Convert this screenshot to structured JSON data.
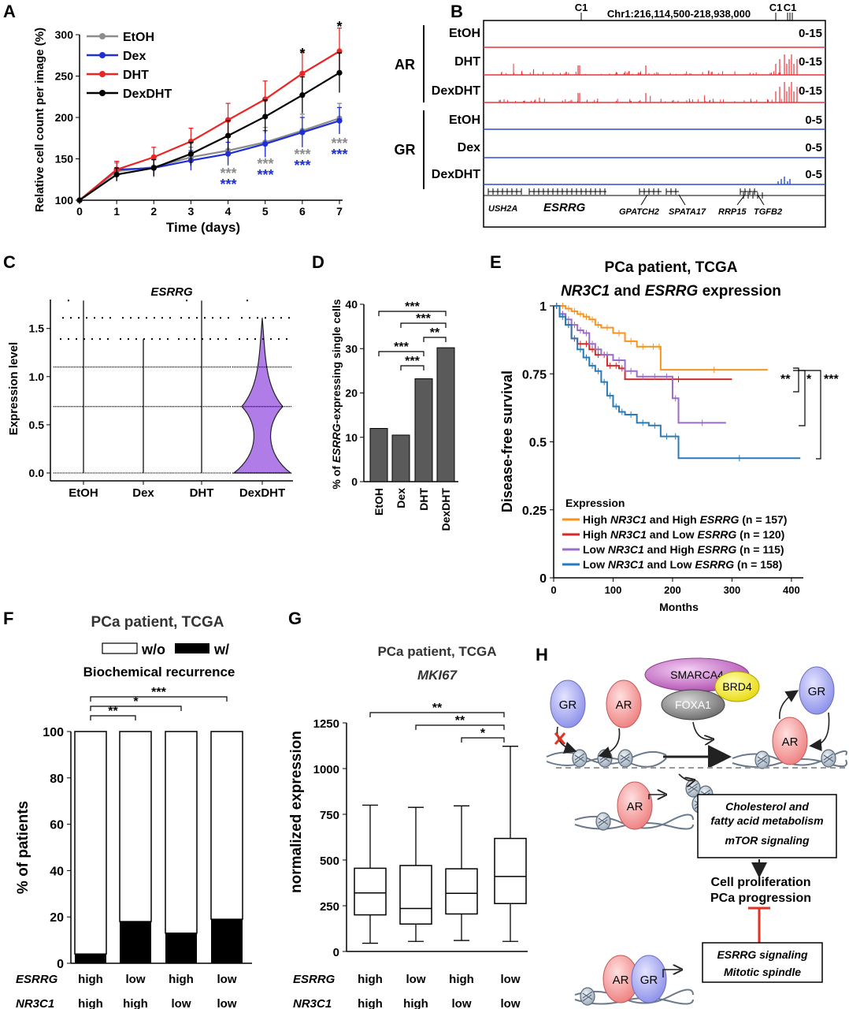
{
  "colors": {
    "etoh": "#8c8c8c",
    "dex": "#1f2fd6",
    "dht": "#ec2424",
    "dexdht": "#000000",
    "ar_track": "#e8333a",
    "gr_track": "#2a4bd8",
    "violin": "#b07ce8",
    "bar": "#5a5a5a",
    "km_orange": "#f7941d",
    "km_red": "#d42a2a",
    "km_purple": "#9b6cc9",
    "km_blue": "#2a7ab8"
  },
  "panel_labels": [
    "A",
    "B",
    "C",
    "D",
    "E",
    "F",
    "G",
    "H"
  ],
  "panelA": {
    "xlabel": "Time (days)",
    "ylabel": "Relative cell count per image (%)",
    "legend": [
      "EtOH",
      "Dex",
      "DHT",
      "DexDHT"
    ],
    "sig_gray": [
      "***",
      "***",
      "***",
      "***"
    ],
    "sig_blue": [
      "***",
      "***",
      "***",
      "***"
    ],
    "sig_black": [
      "*",
      "*"
    ]
  },
  "panelB": {
    "coord": "Chr1:216,114,500-218,938,000",
    "c1_labels": [
      "C1",
      "C1",
      "C1"
    ],
    "group_ar": "AR",
    "group_gr": "GR",
    "tracks": [
      {
        "name": "EtOH",
        "range": "0-15"
      },
      {
        "name": "DHT",
        "range": "0-15"
      },
      {
        "name": "DexDHT",
        "range": "0-15"
      },
      {
        "name": "EtOH",
        "range": "0-5"
      },
      {
        "name": "Dex",
        "range": "0-5"
      },
      {
        "name": "DexDHT",
        "range": "0-5"
      }
    ],
    "genes": [
      "USH2A",
      "ESRRG",
      "GPATCH2",
      "SPATA17",
      "RRP15",
      "TGFB2"
    ]
  },
  "panelC": {
    "title": "ESRRG",
    "ylabel": "Expression level"
  },
  "panelD": {
    "ylabel_pre": "% of ",
    "ylabel_gene": "ESRRG",
    "ylabel_post": "-expressing single cells",
    "sigs": [
      "***",
      "***",
      "**",
      "***",
      "***"
    ]
  },
  "panelE": {
    "title1": "PCa patient, TCGA",
    "title2_gene1": "NR3C1",
    "title2_mid": " and ",
    "title2_gene2": "ESRRG",
    "title2_post": " expression",
    "xlabel": "Months",
    "ylabel": "Disease-free survival",
    "legend_title": "Expression",
    "legend": [
      {
        "l1": "High ",
        "g1": "NR3C1",
        "m": " and High ",
        "g2": "ESRRG",
        "n": " (n = 157)"
      },
      {
        "l1": "High ",
        "g1": "NR3C1",
        "m": " and Low ",
        "g2": "ESRRG",
        "n": " (n = 120)"
      },
      {
        "l1": "Low ",
        "g1": "NR3C1",
        "m": " and High ",
        "g2": "ESRRG",
        "n": " (n = 115)"
      },
      {
        "l1": "Low ",
        "g1": "NR3C1",
        "m": " and Low ",
        "g2": "ESRRG",
        "n": " (n = 158)"
      }
    ],
    "sigs": [
      "**",
      "*",
      "***"
    ]
  },
  "panelF": {
    "title": "PCa patient, TCGA",
    "legend_wo": "w/o",
    "legend_w": "w/",
    "subtitle": "Biochemical recurrence",
    "ylabel": "% of patients",
    "row1_label": "ESRRG",
    "row2_label": "NR3C1",
    "row1": [
      "high",
      "low",
      "high",
      "low"
    ],
    "row2": [
      "high",
      "high",
      "low",
      "low"
    ],
    "sigs": [
      "**",
      "*",
      "***"
    ]
  },
  "panelG": {
    "title": "PCa patient, TCGA",
    "gene": "MKI67",
    "ylabel": "normalized expression",
    "row1_label": "ESRRG",
    "row2_label": "NR3C1",
    "row1": [
      "high",
      "low",
      "high",
      "low"
    ],
    "row2": [
      "high",
      "high",
      "low",
      "low"
    ],
    "sigs": [
      "**",
      "**",
      "*"
    ]
  },
  "panelH": {
    "labels": {
      "gr": "GR",
      "ar": "AR",
      "smarca4": "SMARCA4",
      "brd4": "BRD4",
      "foxa1": "FOXA1"
    },
    "box1_line1": "Cholesterol and",
    "box1_line2": "fatty acid metabolism",
    "box1_line3": "mTOR signaling",
    "outcome1": "Cell proliferation",
    "outcome2": "PCa progression",
    "box2_line1": "ESRRG signaling",
    "box2_line2": "Mitotic spindle"
  },
  "chart_data": [
    {
      "type": "line",
      "panel": "A",
      "xlabel": "Time (days)",
      "ylabel": "Relative cell count per image (%)",
      "xlim": [
        0,
        7
      ],
      "ylim": [
        100,
        300
      ],
      "x": [
        0,
        1,
        2,
        3,
        4,
        5,
        6,
        7
      ],
      "series": [
        {
          "name": "EtOH",
          "values": [
            100,
            135,
            140,
            152,
            160,
            170,
            184,
            199
          ],
          "err": [
            0,
            10,
            12,
            12,
            16,
            18,
            20,
            18
          ]
        },
        {
          "name": "Dex",
          "values": [
            100,
            137,
            139,
            148,
            156,
            168,
            182,
            196
          ],
          "err": [
            0,
            10,
            10,
            12,
            14,
            16,
            18,
            16
          ]
        },
        {
          "name": "DHT",
          "values": [
            100,
            137,
            152,
            171,
            197,
            222,
            253,
            280
          ],
          "err": [
            0,
            10,
            12,
            16,
            20,
            22,
            26,
            28
          ]
        },
        {
          "name": "DexDHT",
          "values": [
            100,
            131,
            139,
            156,
            178,
            201,
            227,
            254
          ],
          "err": [
            0,
            8,
            10,
            14,
            18,
            20,
            22,
            24
          ]
        }
      ]
    },
    {
      "type": "scatter",
      "panel": "C",
      "title": "ESRRG",
      "ylabel": "Expression level",
      "categories": [
        "EtOH",
        "Dex",
        "DHT",
        "DexDHT"
      ],
      "ylim": [
        0,
        1.8
      ],
      "levels": [
        0,
        0.69,
        1.1,
        1.39,
        1.61,
        1.79
      ]
    },
    {
      "type": "bar",
      "panel": "D",
      "ylabel": "% of ESRRG-expressing single cells",
      "categories": [
        "EtOH",
        "Dex",
        "DHT",
        "DexDHT"
      ],
      "values": [
        12,
        10.5,
        23.2,
        30.2
      ],
      "ylim": [
        0,
        40
      ]
    },
    {
      "type": "line",
      "panel": "E",
      "title": "PCa patient, TCGA — NR3C1 and ESRRG expression",
      "xlabel": "Months",
      "ylabel": "Disease-free survival",
      "xlim": [
        0,
        420
      ],
      "ylim": [
        0,
        1
      ],
      "series": [
        {
          "name": "High NR3C1 and High ESRRG (n = 157)",
          "x": [
            0,
            10,
            20,
            30,
            40,
            50,
            60,
            70,
            80,
            100,
            120,
            140,
            160,
            175,
            180,
            360
          ],
          "values": [
            1,
            1,
            0.99,
            0.98,
            0.97,
            0.96,
            0.95,
            0.93,
            0.92,
            0.9,
            0.87,
            0.85,
            0.85,
            0.85,
            0.765,
            0.765
          ]
        },
        {
          "name": "High NR3C1 and Low ESRRG (n = 120)",
          "x": [
            0,
            10,
            20,
            30,
            40,
            50,
            60,
            70,
            80,
            90,
            100,
            110,
            120,
            300
          ],
          "values": [
            1,
            0.97,
            0.93,
            0.88,
            0.86,
            0.86,
            0.84,
            0.82,
            0.82,
            0.78,
            0.78,
            0.77,
            0.73,
            0.73
          ]
        },
        {
          "name": "Low NR3C1 and High ESRRG (n = 115)",
          "x": [
            0,
            10,
            20,
            30,
            40,
            50,
            60,
            70,
            80,
            100,
            120,
            140,
            160,
            180,
            200,
            210,
            290
          ],
          "values": [
            1,
            0.97,
            0.95,
            0.93,
            0.91,
            0.9,
            0.86,
            0.84,
            0.82,
            0.8,
            0.76,
            0.74,
            0.74,
            0.74,
            0.66,
            0.57,
            0.57
          ]
        },
        {
          "name": "Low NR3C1 and Low ESRRG (n = 158)",
          "x": [
            0,
            10,
            20,
            30,
            40,
            50,
            60,
            70,
            80,
            90,
            100,
            110,
            120,
            140,
            160,
            180,
            200,
            210,
            415
          ],
          "values": [
            1,
            0.96,
            0.93,
            0.88,
            0.84,
            0.81,
            0.78,
            0.76,
            0.72,
            0.67,
            0.63,
            0.61,
            0.6,
            0.57,
            0.56,
            0.52,
            0.52,
            0.44,
            0.44
          ]
        }
      ]
    },
    {
      "type": "bar",
      "panel": "F",
      "title": "PCa patient, TCGA",
      "ylabel": "% of patients",
      "categories": [
        "high/high",
        "low/high",
        "high/low",
        "low/low"
      ],
      "series": [
        {
          "name": "w/",
          "values": [
            4,
            18,
            13,
            19
          ]
        },
        {
          "name": "w/o",
          "values": [
            96,
            82,
            87,
            81
          ]
        }
      ],
      "ylim": [
        0,
        100
      ]
    },
    {
      "type": "box",
      "panel": "G",
      "title": "PCa patient, TCGA — MKI67",
      "ylabel": "normalized expression",
      "categories": [
        "high/high",
        "low/high",
        "high/low",
        "low/low"
      ],
      "min": [
        45,
        55,
        60,
        55
      ],
      "q1": [
        200,
        150,
        205,
        262
      ],
      "median": [
        320,
        235,
        318,
        410
      ],
      "q3": [
        455,
        470,
        452,
        618
      ],
      "max": [
        800,
        788,
        796,
        1122
      ],
      "ylim": [
        0,
        1250
      ]
    }
  ]
}
